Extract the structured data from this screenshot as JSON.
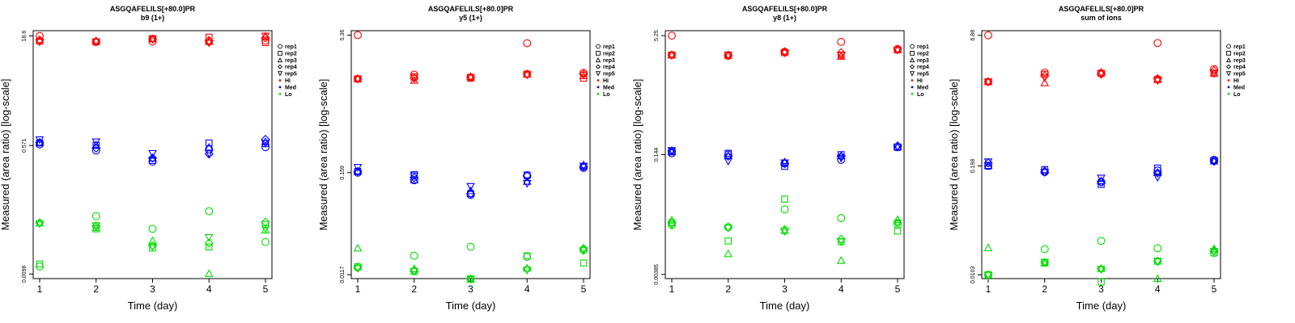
{
  "chart_data": [
    {
      "type": "scatter",
      "title": "ASGQAFELILS[+80.0]PR",
      "subtitle": "b9 (1+)",
      "xlabel": "Time (day)",
      "ylabel": "Measured (area ratio) [log-scale]",
      "x_ticks": [
        "1",
        "2",
        "3",
        "4",
        "5"
      ],
      "y_ticks": [
        "0.0096",
        "0.571",
        "18.6"
      ],
      "y_tick_values": [
        0.0096,
        0.571,
        18.6
      ],
      "ylim": [
        0.0083,
        22.0
      ],
      "log_y": true,
      "legend": [
        "rep1",
        "rep2",
        "rep3",
        "rep4",
        "rep5",
        "Hi",
        "Med",
        "Lo"
      ],
      "colors": {
        "Hi": "#ff0000",
        "Med": "#0000ff",
        "Lo": "#00dd00"
      },
      "points": {
        "Hi": [
          [
            18.6,
            15.4,
            15.6,
            15.6,
            16.1
          ],
          [
            15.8,
            15.4,
            17.1,
            17.9,
            15.1
          ],
          [
            16.3,
            15.8,
            16.7,
            15.4,
            18.3
          ],
          [
            16.3,
            15.6,
            16.9,
            16.1,
            17.5
          ],
          [
            15.6,
            15.6,
            16.9,
            15.1,
            18.8
          ]
        ],
        "Med": [
          [
            0.59,
            0.487,
            0.342,
            0.505,
            0.542
          ],
          [
            0.62,
            0.574,
            0.356,
            0.62,
            0.608
          ],
          [
            0.62,
            0.574,
            0.377,
            0.534,
            0.637
          ],
          [
            0.629,
            0.525,
            0.384,
            0.436,
            0.695
          ],
          [
            0.695,
            0.65,
            0.449,
            0.451,
            0.62
          ]
        ],
        "Lo": [
          [
            0.0122,
            0.0605,
            0.0405,
            0.0707,
            0.0266
          ],
          [
            0.0132,
            0.0403,
            0.0219,
            0.0227,
            0.0463
          ],
          [
            0.048,
            0.0413,
            0.0274,
            0.0096,
            0.0383
          ],
          [
            0.049,
            0.044,
            0.0238,
            0.0257,
            0.05
          ],
          [
            0.048,
            0.0453,
            0.0231,
            0.0311,
            0.041
          ]
        ]
      }
    },
    {
      "type": "scatter",
      "title": "ASGQAFELILS[+80.0]PR",
      "subtitle": "y5 (1+)",
      "xlabel": "Time (day)",
      "ylabel": "Measured (area ratio) [log-scale]",
      "x_ticks": [
        "1",
        "2",
        "3",
        "4",
        "5"
      ],
      "y_ticks": [
        "0.0117",
        "0.159",
        "5.36"
      ],
      "y_tick_values": [
        0.0117,
        0.159,
        5.36
      ],
      "ylim": [
        0.0106,
        6.0
      ],
      "log_y": true,
      "legend": [
        "rep1",
        "rep2",
        "rep3",
        "rep4",
        "rep5",
        "Hi",
        "Med",
        "Lo"
      ],
      "colors": {
        "Hi": "#ff0000",
        "Med": "#0000ff",
        "Lo": "#00dd00"
      },
      "points": {
        "Hi": [
          [
            5.36,
            1.95,
            1.82,
            4.35,
            2.04
          ],
          [
            1.75,
            1.85,
            1.78,
            1.98,
            1.78
          ],
          [
            1.75,
            1.67,
            1.84,
            1.95,
            1.88
          ],
          [
            1.75,
            1.78,
            1.82,
            1.98,
            1.98
          ],
          [
            1.75,
            1.8,
            1.84,
            1.95,
            1.95
          ]
        ],
        "Med": [
          [
            0.159,
            0.131,
            0.09,
            0.145,
            0.18
          ],
          [
            0.164,
            0.151,
            0.093,
            0.15,
            0.186
          ],
          [
            0.164,
            0.131,
            0.099,
            0.126,
            0.192
          ],
          [
            0.164,
            0.14,
            0.093,
            0.148,
            0.186
          ],
          [
            0.184,
            0.148,
            0.113,
            0.122,
            0.19
          ]
        ],
        "Lo": [
          [
            0.0143,
            0.019,
            0.0239,
            0.0185,
            0.0219
          ],
          [
            0.0143,
            0.0127,
            0.0105,
            0.019,
            0.0158
          ],
          [
            0.0229,
            0.0135,
            0.0103,
            0.0137,
            0.0229
          ],
          [
            0.0139,
            0.0129,
            0.0105,
            0.0135,
            0.0229
          ],
          [
            0.0139,
            0.0129,
            0.0105,
            0.0133,
            0.0219
          ]
        ]
      }
    },
    {
      "type": "scatter",
      "title": "ASGQAFELILS[+80.0]PR",
      "subtitle": "y8 (1+)",
      "xlabel": "Time (day)",
      "ylabel": "Measured (area ratio) [log-scale]",
      "x_ticks": [
        "1",
        "2",
        "3",
        "4",
        "5"
      ],
      "y_ticks": [
        "0.00385",
        "0.144",
        "5.25"
      ],
      "y_tick_values": [
        0.00385,
        0.144,
        5.25
      ],
      "ylim": [
        0.0034,
        6.1
      ],
      "log_y": true,
      "legend": [
        "rep1",
        "rep2",
        "rep3",
        "rep4",
        "rep5",
        "Hi",
        "Med",
        "Lo"
      ],
      "colors": {
        "Hi": "#ff0000",
        "Med": "#0000ff",
        "Lo": "#00dd00"
      },
      "points": {
        "Hi": [
          [
            5.25,
            2.85,
            3.22,
            4.35,
            3.5
          ],
          [
            2.92,
            2.92,
            3.14,
            2.92,
            3.42
          ],
          [
            2.92,
            2.85,
            3.22,
            2.78,
            3.42
          ],
          [
            2.92,
            2.92,
            3.22,
            3.14,
            3.5
          ],
          [
            2.92,
            2.92,
            3.14,
            2.92,
            3.42
          ]
        ],
        "Med": [
          [
            0.15,
            0.144,
            0.11,
            0.123,
            0.18
          ],
          [
            0.157,
            0.15,
            0.101,
            0.144,
            0.18
          ],
          [
            0.157,
            0.137,
            0.114,
            0.137,
            0.18
          ],
          [
            0.161,
            0.137,
            0.11,
            0.137,
            0.188
          ],
          [
            0.165,
            0.12,
            0.114,
            0.131,
            0.184
          ]
        ],
        "Lo": [
          [
            0.0171,
            0.0161,
            0.0275,
            0.0212,
            0.0175
          ],
          [
            0.0183,
            0.0106,
            0.0375,
            0.0104,
            0.0143
          ],
          [
            0.0196,
            0.0071,
            0.0143,
            0.0058,
            0.02
          ],
          [
            0.0183,
            0.0161,
            0.015,
            0.0112,
            0.0183
          ],
          [
            0.0175,
            0.0158,
            0.0143,
            0.0104,
            0.0183
          ]
        ]
      }
    },
    {
      "type": "scatter",
      "title": "ASGQAFELILS[+80.0]PR",
      "subtitle": "sum of ions",
      "xlabel": "Time (day)",
      "ylabel": "Measured (area ratio) [log-scale]",
      "x_ticks": [
        "1",
        "2",
        "3",
        "4",
        "5"
      ],
      "y_ticks": [
        "0.0103",
        "0.198",
        "6.88"
      ],
      "y_tick_values": [
        0.0103,
        0.198,
        6.88
      ],
      "ylim": [
        0.0093,
        7.8
      ],
      "log_y": true,
      "legend": [
        "rep1",
        "rep2",
        "rep3",
        "rep4",
        "rep5",
        "Hi",
        "Med",
        "Lo"
      ],
      "colors": {
        "Hi": "#ff0000",
        "Med": "#0000ff",
        "Lo": "#00dd00"
      },
      "points": {
        "Hi": [
          [
            6.88,
            2.5,
            2.45,
            5.58,
            2.75
          ],
          [
            1.95,
            2.39,
            2.45,
            2.07,
            2.45
          ],
          [
            1.95,
            1.87,
            2.5,
            2.07,
            2.45
          ],
          [
            1.95,
            2.29,
            2.39,
            2.12,
            2.64
          ],
          [
            1.95,
            2.2,
            2.45,
            2.03,
            2.45
          ]
        ],
        "Med": [
          [
            0.198,
            0.168,
            0.128,
            0.175,
            0.234
          ],
          [
            0.198,
            0.179,
            0.12,
            0.187,
            0.229
          ],
          [
            0.198,
            0.175,
            0.131,
            0.164,
            0.224
          ],
          [
            0.215,
            0.168,
            0.128,
            0.164,
            0.224
          ],
          [
            0.224,
            0.168,
            0.144,
            0.147,
            0.229
          ]
        ],
        "Lo": [
          [
            0.0103,
            0.0207,
            0.0259,
            0.0212,
            0.0187
          ],
          [
            0.0103,
            0.0144,
            0.0085,
            0.0149,
            0.0187
          ],
          [
            0.0212,
            0.014,
            0.0121,
            0.0092,
            0.0207
          ],
          [
            0.0103,
            0.0144,
            0.0121,
            0.0149,
            0.0197
          ],
          [
            0.0103,
            0.0147,
            0.0121,
            0.0149,
            0.0197
          ]
        ]
      }
    }
  ]
}
